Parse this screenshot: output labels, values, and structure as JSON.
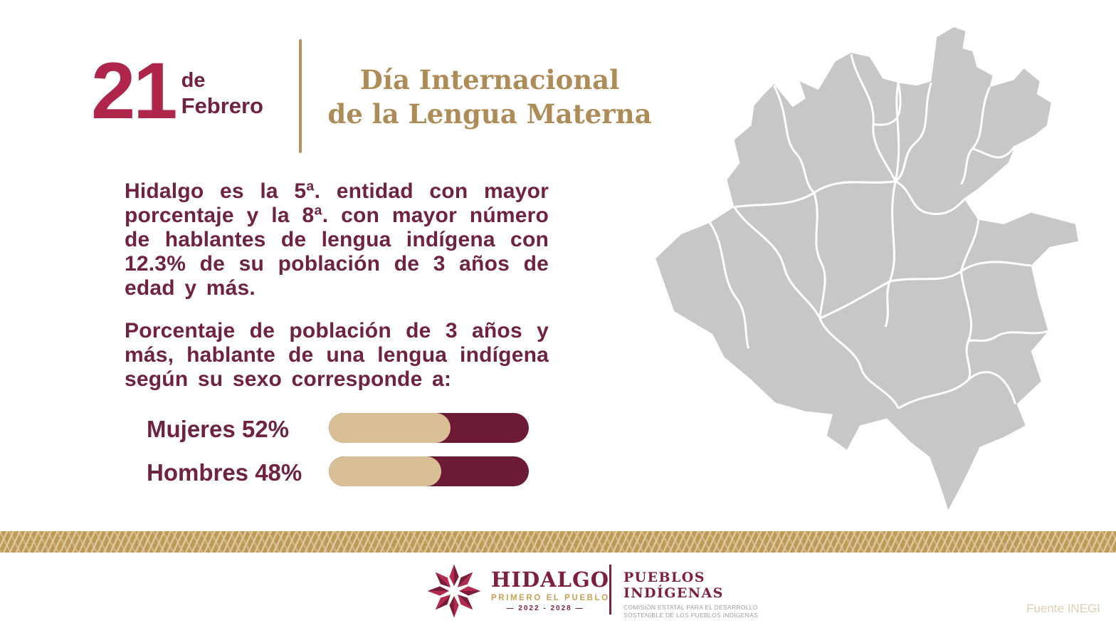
{
  "header": {
    "day": "21",
    "month_prefix": "de",
    "month": "Febrero",
    "title_line1": "Día Internacional",
    "title_line2": "de la Lengua Materna"
  },
  "body": {
    "paragraph1": "Hidalgo es la 5ª. entidad con mayor porcentaje y la 8ª. con mayor número de hablantes de lengua indígena con 12.3% de su población de 3 años de edad y más.",
    "paragraph2": "Porcentaje de población de 3 años y más, hablante de una lengua indígena según su sexo corresponde a:"
  },
  "chart_data": {
    "type": "bar",
    "orientation": "horizontal",
    "title": "Porcentaje de población de 3 años y más, hablante de una lengua indígena según su sexo",
    "categories": [
      "Mujeres",
      "Hombres"
    ],
    "values": [
      52,
      48
    ],
    "unit": "%",
    "display_labels": [
      "Mujeres 52%",
      "Hombres 48%"
    ],
    "legend": "none",
    "bar_colors": {
      "fill": "#d8bf95",
      "track": "#6d1a35"
    }
  },
  "map": {
    "name": "Mapa del estado de Hidalgo con división municipal",
    "fill_color": "#c6c7c9",
    "border_color": "#ffffff"
  },
  "footer": {
    "logo_name": "HIDALGO",
    "logo_tagline": "PRIMERO EL PUEBLO",
    "logo_period": "— 2022 - 2028 —",
    "org_line1": "PUEBLOS",
    "org_line2": "INDÍGENAS",
    "org_sub1": "COMISIÓN ESTATAL PARA EL DESARROLLO",
    "org_sub2": "SOSTENIBLE DE LOS PUEBLOS INDÍGENAS",
    "source": "Fuente INEGI"
  },
  "colors": {
    "date_accent": "#b0254a",
    "wine_text": "#6f2242",
    "gold_title": "#ae8c58",
    "gold_divider": "#b39161",
    "band_base": "#c09a58",
    "band_light": "#ddcaa2",
    "map_gray": "#c6c7c9",
    "footer_maroon": "#7d1f3e",
    "footer_gold": "#c9a255",
    "source_text": "#ded0b4",
    "star_light": "#b42a4e",
    "star_dark": "#7a1c38"
  }
}
